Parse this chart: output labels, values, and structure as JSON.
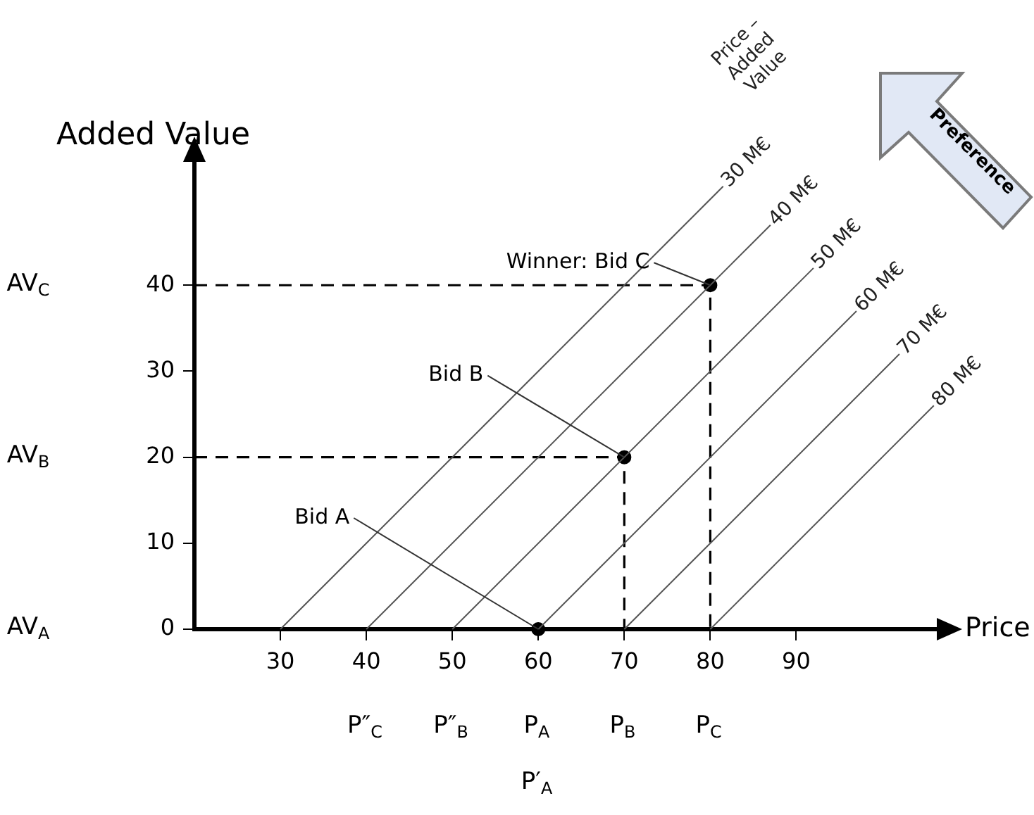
{
  "chart_data": {
    "type": "line",
    "xlabel": "Price",
    "ylabel": "Added Value",
    "legend_title": "Price –\nAdded\nValue",
    "xlim": [
      20,
      107
    ],
    "ylim": [
      0,
      55
    ],
    "xticks": [
      30,
      40,
      50,
      60,
      70,
      80,
      90
    ],
    "yticks": [
      0,
      10,
      20,
      30,
      40
    ],
    "grid": false,
    "legend": false,
    "marker": "none",
    "series": [
      {
        "name": "30 M€",
        "color": "#555555",
        "x": [
          30,
          81.5
        ],
        "values": [
          0,
          51.5
        ]
      },
      {
        "name": "40 M€",
        "color": "#555555",
        "x": [
          40,
          87
        ],
        "values": [
          0,
          47
        ]
      },
      {
        "name": "50 M€",
        "color": "#555555",
        "x": [
          50,
          92
        ],
        "values": [
          0,
          42
        ]
      },
      {
        "name": "60 M€",
        "color": "#555555",
        "x": [
          60,
          97
        ],
        "values": [
          0,
          37
        ]
      },
      {
        "name": "70 M€",
        "color": "#555555",
        "x": [
          70,
          102
        ],
        "values": [
          0,
          32
        ]
      },
      {
        "name": "80 M€",
        "color": "#555555",
        "x": [
          80,
          106
        ],
        "values": [
          0,
          26
        ]
      },
      {
        "color": "#000000",
        "line_style": "dashed",
        "x": [
          20,
          80,
          80
        ],
        "values": [
          40,
          40,
          0
        ]
      },
      {
        "color": "#000000",
        "line_style": "dashed",
        "x": [
          20,
          70,
          70
        ],
        "values": [
          20,
          20,
          0
        ]
      },
      {
        "type": "scatter",
        "marker": "circle",
        "color": "#000000",
        "x": [
          60,
          70,
          80
        ],
        "values": [
          0,
          20,
          40
        ]
      }
    ],
    "annotations": [
      {
        "text": "Bid A",
        "x": 60,
        "y": 0
      },
      {
        "text": "Bid B",
        "x": 70,
        "y": 20
      },
      {
        "text": "Winner: Bid C",
        "x": 80,
        "y": 40
      },
      "AV$_{C}$",
      "AV$_{B}$",
      "AV$_{A}$",
      "P″$_{C}$",
      "P″$_{B}$",
      "P$_{A}$",
      "P$_{B}$",
      "P$_{C}$",
      "P′$_{A}$",
      "Preference"
    ]
  }
}
